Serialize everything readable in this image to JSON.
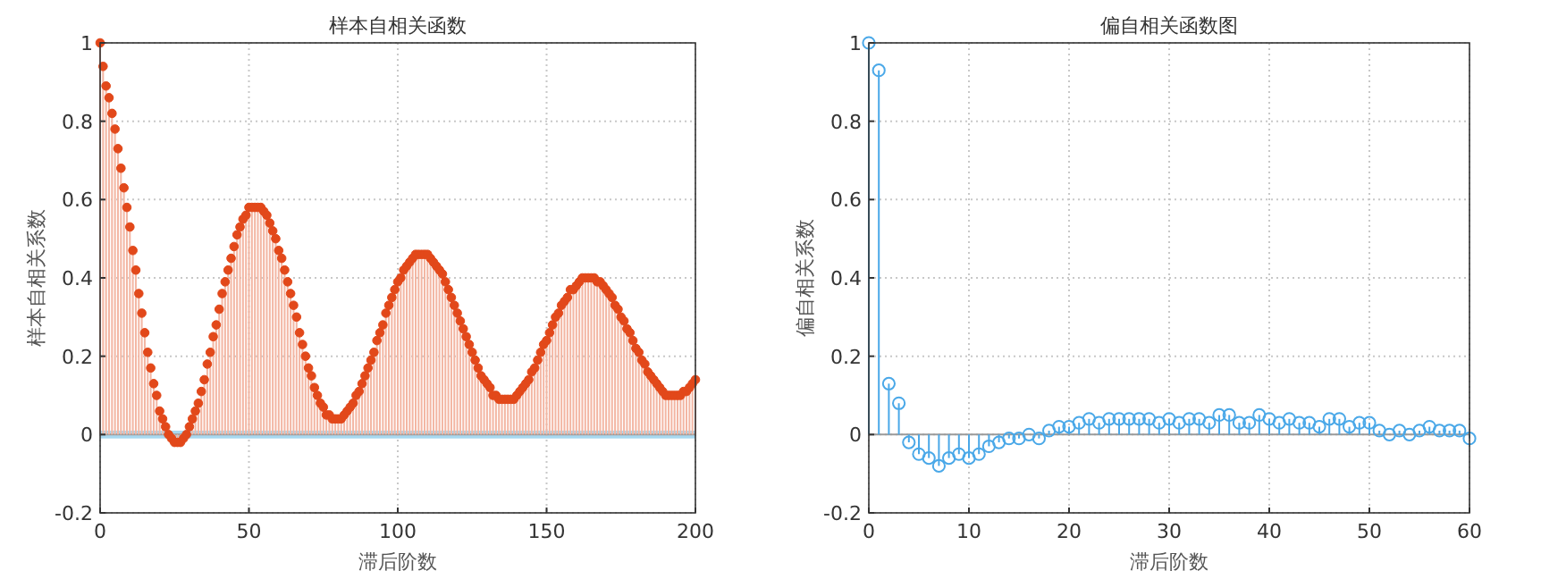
{
  "chart_data": [
    {
      "type": "lollipop",
      "title": "样本自相关函数",
      "xlabel": "滞后阶数",
      "ylabel": "样本自相关系数",
      "xlim": [
        0,
        200
      ],
      "xticks": [
        0,
        50,
        100,
        150,
        200
      ],
      "ylim": [
        -0.2,
        1
      ],
      "yticks": [
        -0.2,
        0,
        0.2,
        0.4,
        0.6,
        0.8,
        1
      ],
      "grid": true,
      "marker": "circle",
      "bands": [
        {
          "axis": "y",
          "from": -0.01,
          "to": 0.01,
          "color": "#a8d8f0"
        }
      ],
      "series": [
        {
          "color": "#e2481a",
          "x": [
            0,
            1,
            2,
            3,
            4,
            5,
            6,
            7,
            8,
            9,
            10,
            11,
            12,
            13,
            14,
            15,
            16,
            17,
            18,
            19,
            20,
            21,
            22,
            23,
            24,
            25,
            26,
            27,
            28,
            29,
            30,
            31,
            32,
            33,
            34,
            35,
            36,
            37,
            38,
            39,
            40,
            41,
            42,
            43,
            44,
            45,
            46,
            47,
            48,
            49,
            50,
            51,
            52,
            53,
            54,
            55,
            56,
            57,
            58,
            59,
            60,
            61,
            62,
            63,
            64,
            65,
            66,
            67,
            68,
            69,
            70,
            71,
            72,
            73,
            74,
            75,
            76,
            77,
            78,
            79,
            80,
            81,
            82,
            83,
            84,
            85,
            86,
            87,
            88,
            89,
            90,
            91,
            92,
            93,
            94,
            95,
            96,
            97,
            98,
            99,
            100,
            101,
            102,
            103,
            104,
            105,
            106,
            107,
            108,
            109,
            110,
            111,
            112,
            113,
            114,
            115,
            116,
            117,
            118,
            119,
            120,
            121,
            122,
            123,
            124,
            125,
            126,
            127,
            128,
            129,
            130,
            131,
            132,
            133,
            134,
            135,
            136,
            137,
            138,
            139,
            140,
            141,
            142,
            143,
            144,
            145,
            146,
            147,
            148,
            149,
            150,
            151,
            152,
            153,
            154,
            155,
            156,
            157,
            158,
            159,
            160,
            161,
            162,
            163,
            164,
            165,
            166,
            167,
            168,
            169,
            170,
            171,
            172,
            173,
            174,
            175,
            176,
            177,
            178,
            179,
            180,
            181,
            182,
            183,
            184,
            185,
            186,
            187,
            188,
            189,
            190,
            191,
            192,
            193,
            194,
            195,
            196,
            197,
            198,
            199,
            200
          ],
          "values": [
            1,
            0.94,
            0.89,
            0.86,
            0.82,
            0.78,
            0.73,
            0.68,
            0.63,
            0.58,
            0.53,
            0.47,
            0.42,
            0.36,
            0.31,
            0.26,
            0.21,
            0.17,
            0.13,
            0.1,
            0.06,
            0.04,
            0.02,
            0,
            -0.01,
            -0.02,
            -0.02,
            -0.02,
            -0.01,
            0,
            0.02,
            0.04,
            0.06,
            0.08,
            0.11,
            0.14,
            0.18,
            0.21,
            0.25,
            0.28,
            0.32,
            0.36,
            0.39,
            0.42,
            0.45,
            0.48,
            0.51,
            0.53,
            0.55,
            0.56,
            0.58,
            0.58,
            0.58,
            0.58,
            0.58,
            0.57,
            0.56,
            0.54,
            0.52,
            0.5,
            0.47,
            0.45,
            0.42,
            0.39,
            0.36,
            0.33,
            0.3,
            0.26,
            0.23,
            0.2,
            0.17,
            0.15,
            0.12,
            0.1,
            0.08,
            0.07,
            0.05,
            0.05,
            0.04,
            0.04,
            0.04,
            0.04,
            0.05,
            0.06,
            0.07,
            0.08,
            0.1,
            0.11,
            0.13,
            0.15,
            0.17,
            0.19,
            0.21,
            0.24,
            0.26,
            0.28,
            0.31,
            0.33,
            0.35,
            0.37,
            0.39,
            0.4,
            0.42,
            0.43,
            0.44,
            0.45,
            0.46,
            0.46,
            0.46,
            0.46,
            0.46,
            0.45,
            0.44,
            0.43,
            0.42,
            0.41,
            0.39,
            0.37,
            0.35,
            0.33,
            0.31,
            0.29,
            0.27,
            0.25,
            0.23,
            0.21,
            0.19,
            0.17,
            0.15,
            0.14,
            0.13,
            0.12,
            0.1,
            0.1,
            0.09,
            0.09,
            0.09,
            0.09,
            0.09,
            0.09,
            0.1,
            0.11,
            0.12,
            0.13,
            0.14,
            0.16,
            0.17,
            0.19,
            0.21,
            0.23,
            0.24,
            0.26,
            0.28,
            0.3,
            0.31,
            0.33,
            0.34,
            0.35,
            0.37,
            0.37,
            0.38,
            0.39,
            0.4,
            0.4,
            0.4,
            0.4,
            0.4,
            0.39,
            0.39,
            0.38,
            0.37,
            0.36,
            0.35,
            0.33,
            0.32,
            0.3,
            0.29,
            0.27,
            0.26,
            0.24,
            0.22,
            0.21,
            0.19,
            0.18,
            0.16,
            0.15,
            0.14,
            0.13,
            0.12,
            0.11,
            0.1,
            0.1,
            0.1,
            0.1,
            0.1,
            0.1,
            0.11,
            0.11,
            0.12,
            0.13,
            0.14
          ]
        }
      ]
    },
    {
      "type": "lollipop",
      "title": "偏自相关函数图",
      "xlabel": "滞后阶数",
      "ylabel": "偏自相关系数",
      "xlim": [
        0,
        60
      ],
      "xticks": [
        0,
        10,
        20,
        30,
        40,
        50,
        60
      ],
      "ylim": [
        -0.2,
        1
      ],
      "yticks": [
        -0.2,
        0,
        0.2,
        0.4,
        0.6,
        0.8,
        1
      ],
      "grid": true,
      "marker": "circle",
      "series": [
        {
          "color": "#4aa8e8",
          "x": [
            0,
            1,
            2,
            3,
            4,
            5,
            6,
            7,
            8,
            9,
            10,
            11,
            12,
            13,
            14,
            15,
            16,
            17,
            18,
            19,
            20,
            21,
            22,
            23,
            24,
            25,
            26,
            27,
            28,
            29,
            30,
            31,
            32,
            33,
            34,
            35,
            36,
            37,
            38,
            39,
            40,
            41,
            42,
            43,
            44,
            45,
            46,
            47,
            48,
            49,
            50,
            51,
            52,
            53,
            54,
            55,
            56,
            57,
            58,
            59,
            60
          ],
          "values": [
            1,
            0.93,
            0.13,
            0.08,
            -0.02,
            -0.05,
            -0.06,
            -0.08,
            -0.06,
            -0.05,
            -0.06,
            -0.05,
            -0.03,
            -0.02,
            -0.01,
            -0.01,
            0,
            -0.01,
            0.01,
            0.02,
            0.02,
            0.03,
            0.04,
            0.03,
            0.04,
            0.04,
            0.04,
            0.04,
            0.04,
            0.03,
            0.04,
            0.03,
            0.04,
            0.04,
            0.03,
            0.05,
            0.05,
            0.03,
            0.03,
            0.05,
            0.04,
            0.03,
            0.04,
            0.03,
            0.03,
            0.02,
            0.04,
            0.04,
            0.02,
            0.03,
            0.03,
            0.01,
            0,
            0.01,
            0,
            0.01,
            0.02,
            0.01,
            0.01,
            0.01,
            -0.01
          ]
        }
      ]
    }
  ]
}
